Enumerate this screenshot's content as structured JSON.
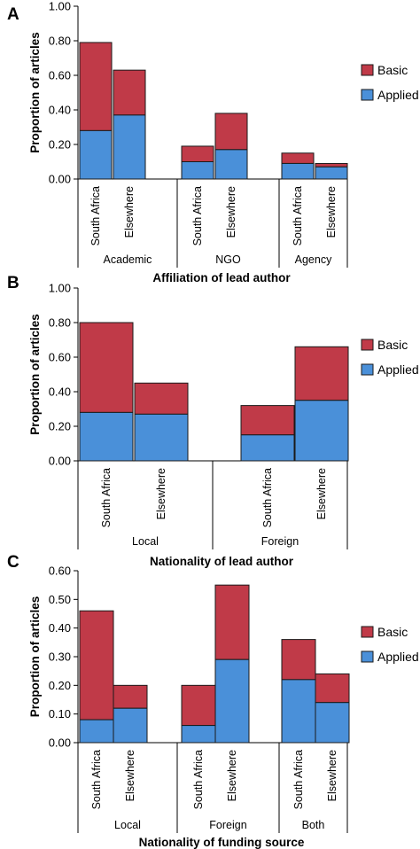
{
  "colors": {
    "basic": "#c03a48",
    "applied": "#4a90d9",
    "stroke": "#1a1a1a"
  },
  "chart_data": [
    {
      "type": "bar",
      "stacked": true,
      "panel": "A",
      "ylabel": "Proportion of articles",
      "xlabel": "Affiliation of lead author",
      "ylim": [
        0,
        1.0
      ],
      "yticks": [
        "0.00",
        "0.20",
        "0.40",
        "0.60",
        "0.80",
        "1.00"
      ],
      "legend": [
        "Basic",
        "Applied"
      ],
      "groups": [
        {
          "name": "Academic",
          "categories": [
            "South Africa",
            "Elsewhere"
          ],
          "total": [
            0.79,
            0.63
          ],
          "applied": [
            0.28,
            0.37
          ]
        },
        {
          "name": "NGO",
          "categories": [
            "South Africa",
            "Elsewhere"
          ],
          "total": [
            0.19,
            0.38
          ],
          "applied": [
            0.1,
            0.17
          ]
        },
        {
          "name": "Agency",
          "categories": [
            "South Africa",
            "Elsewhere"
          ],
          "total": [
            0.15,
            0.09
          ],
          "applied": [
            0.09,
            0.07
          ]
        }
      ]
    },
    {
      "type": "bar",
      "stacked": true,
      "panel": "B",
      "ylabel": "Proportion of articles",
      "xlabel": "Nationality of lead author",
      "ylim": [
        0,
        1.0
      ],
      "yticks": [
        "0.00",
        "0.20",
        "0.40",
        "0.60",
        "0.80",
        "1.00"
      ],
      "legend": [
        "Basic",
        "Applied"
      ],
      "groups": [
        {
          "name": "Local",
          "categories": [
            "South Africa",
            "Elsewhere"
          ],
          "total": [
            0.8,
            0.45
          ],
          "applied": [
            0.28,
            0.27
          ]
        },
        {
          "name": "Foreign",
          "categories": [
            "South Africa",
            "Elsewhere"
          ],
          "total": [
            0.32,
            0.66
          ],
          "applied": [
            0.15,
            0.35
          ]
        }
      ]
    },
    {
      "type": "bar",
      "stacked": true,
      "panel": "C",
      "ylabel": "Proportion of articles",
      "xlabel": "Nationality of funding source",
      "ylim": [
        0,
        0.6
      ],
      "yticks": [
        "0.00",
        "0.10",
        "0.20",
        "0.30",
        "0.40",
        "0.50",
        "0.60"
      ],
      "legend": [
        "Basic",
        "Applied"
      ],
      "groups": [
        {
          "name": "Local",
          "categories": [
            "South Africa",
            "Elsewhere"
          ],
          "total": [
            0.46,
            0.2
          ],
          "applied": [
            0.08,
            0.12
          ]
        },
        {
          "name": "Foreign",
          "categories": [
            "South Africa",
            "Elsewhere"
          ],
          "total": [
            0.2,
            0.55
          ],
          "applied": [
            0.06,
            0.29
          ]
        },
        {
          "name": "Both",
          "categories": [
            "South Africa",
            "Elsewhere"
          ],
          "total": [
            0.36,
            0.24
          ],
          "applied": [
            0.22,
            0.14
          ]
        }
      ]
    }
  ]
}
